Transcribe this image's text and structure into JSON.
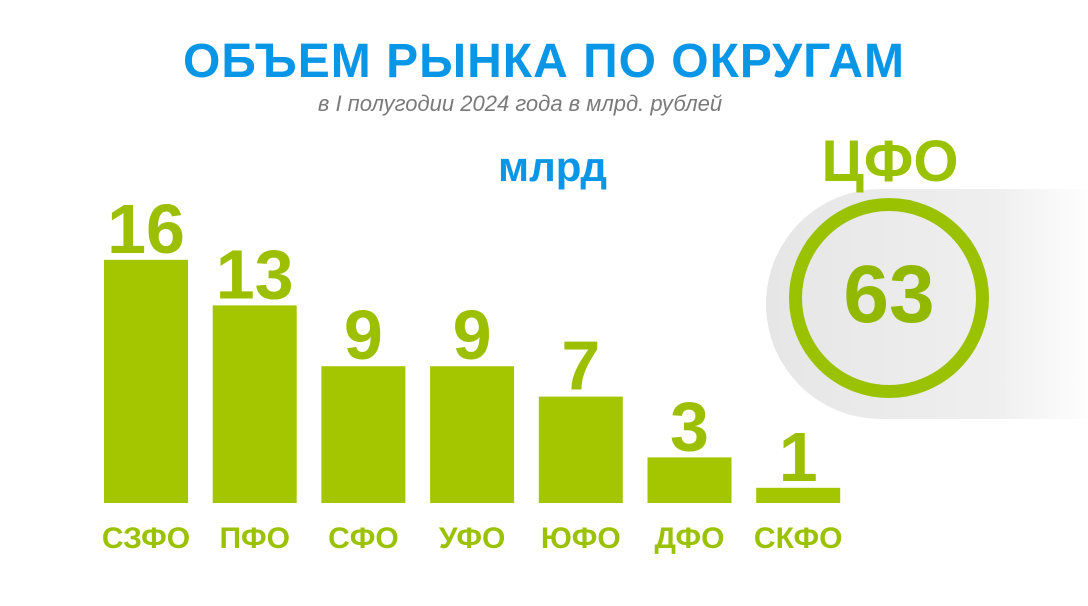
{
  "header": {
    "title": "ОБЪЕМ РЫНКА ПО ОКРУГАМ",
    "subtitle": "в I полугодии 2024 года в млрд. рублей",
    "unit_label": "млрд"
  },
  "colors": {
    "title": "#0a96e6",
    "bar": "#a3c600",
    "label": "#9ac200",
    "callout_bg": "#e9e9e9"
  },
  "callout": {
    "label": "ЦФО",
    "value": "63"
  },
  "chart_data": {
    "type": "bar",
    "categories": [
      "СЗФО",
      "ПФО",
      "СФО",
      "УФО",
      "ЮФО",
      "ДФО",
      "СКФО"
    ],
    "values": [
      16,
      13,
      9,
      9,
      7,
      3,
      1
    ],
    "title": "ОБЪЕМ РЫНКА ПО ОКРУГАМ",
    "subtitle": "в I полугодии 2024 года в млрд. рублей",
    "ylabel": "млрд",
    "ylim": [
      0,
      16
    ],
    "grid": false,
    "legend": "none"
  }
}
